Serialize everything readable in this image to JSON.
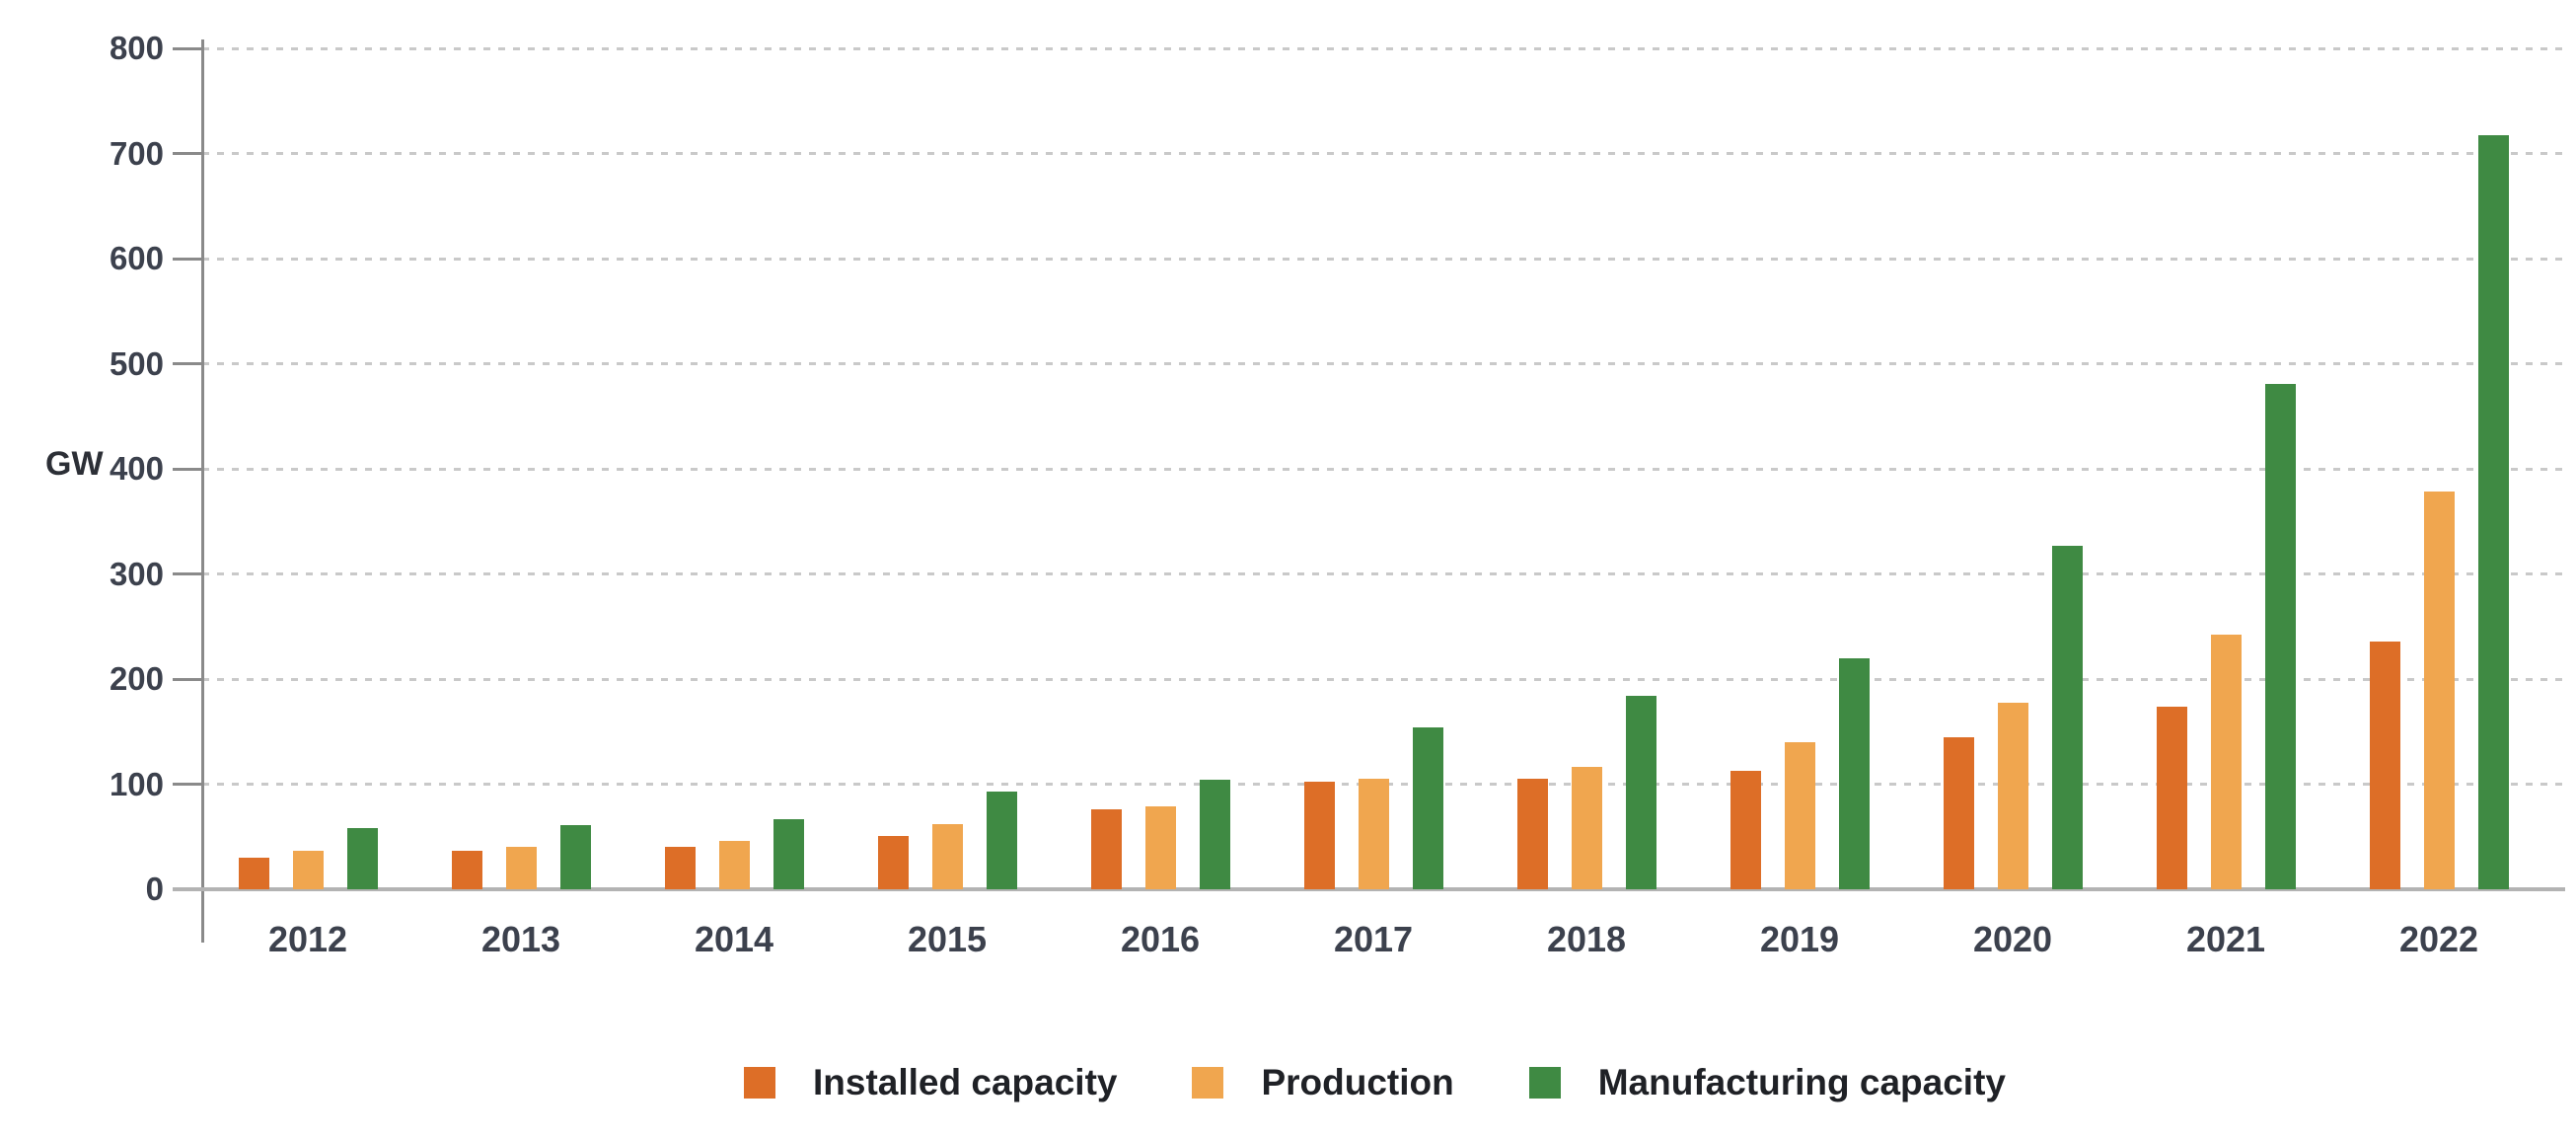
{
  "chart_data": {
    "type": "bar",
    "title": "",
    "ylabel": "GW",
    "xlabel": "",
    "ylim": [
      0,
      800
    ],
    "ytick_interval": 100,
    "yticks": [
      0,
      100,
      200,
      300,
      400,
      500,
      600,
      700,
      800
    ],
    "grid": "horizontal-dashed",
    "legend_position": "bottom",
    "categories": [
      "2012",
      "2013",
      "2014",
      "2015",
      "2016",
      "2017",
      "2018",
      "2019",
      "2020",
      "2021",
      "2022"
    ],
    "series": [
      {
        "name": "Installed capacity",
        "color": "#dd6e27",
        "values": [
          30,
          37,
          40,
          51,
          76,
          102,
          105,
          113,
          145,
          174,
          236
        ]
      },
      {
        "name": "Production",
        "color": "#f0a64f",
        "values": [
          37,
          40,
          46,
          62,
          79,
          105,
          116,
          140,
          177,
          242,
          378
        ]
      },
      {
        "name": "Manufacturing capacity",
        "color": "#3f8a43",
        "values": [
          58,
          61,
          67,
          93,
          104,
          154,
          184,
          220,
          327,
          481,
          717
        ]
      }
    ]
  },
  "colors": {
    "gridline": "#c9c9c9",
    "axis": "#8a8a8a",
    "baseline": "#b3b3b3",
    "tick_text": "#3c414d",
    "legend_text": "#1f2126"
  }
}
